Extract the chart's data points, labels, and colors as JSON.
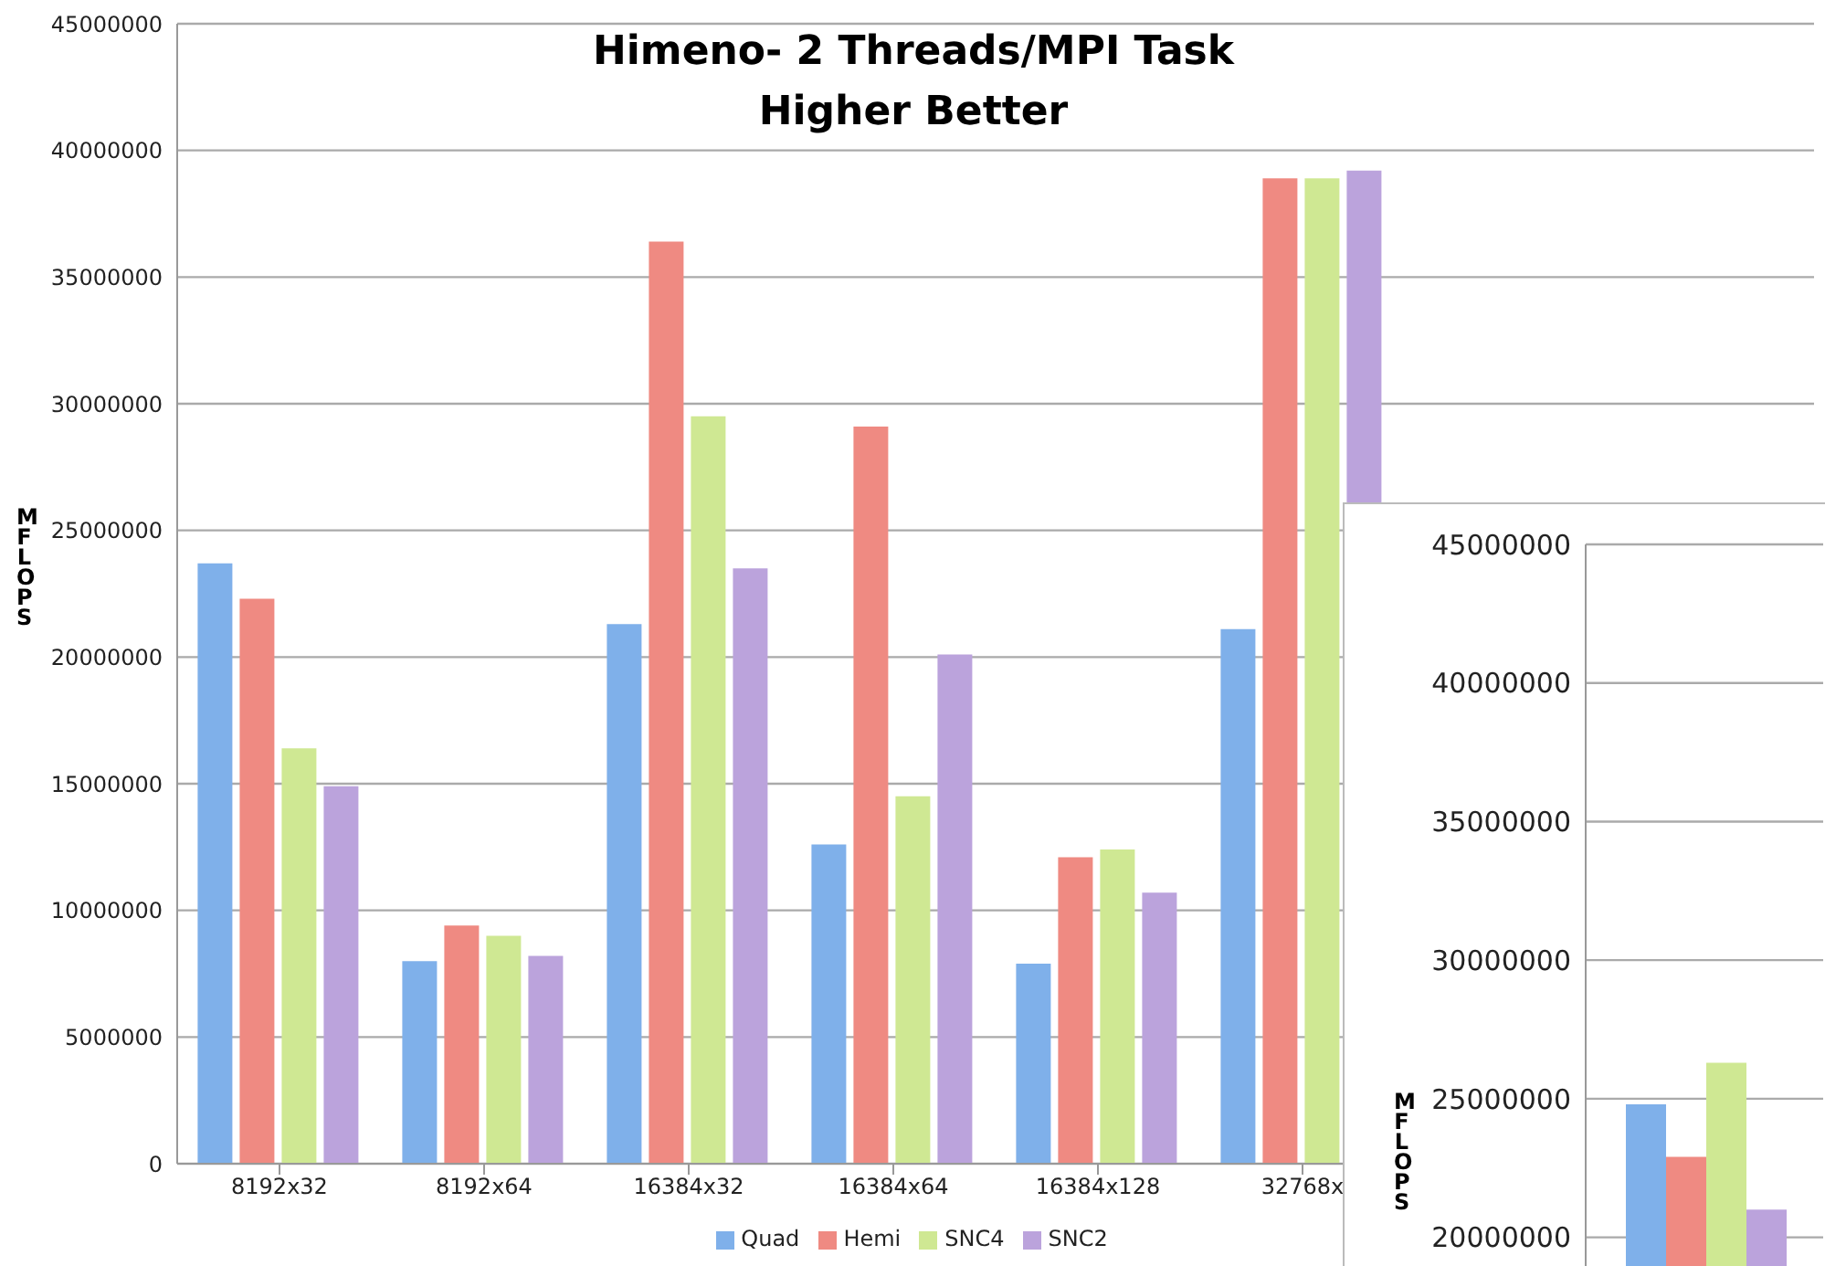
{
  "chart_data": [
    {
      "type": "bar",
      "title": "Himeno- 2 Threads/MPI Task",
      "subtitle": "Higher Better",
      "ylabel": "MFLOPS",
      "categories": [
        "8192x32",
        "8192x64",
        "16384x32",
        "16384x64",
        "16384x128",
        "32768x",
        null,
        null
      ],
      "series": [
        {
          "name": "Quad",
          "color": "#7fb0ea",
          "values": [
            23700000,
            8000000,
            21300000,
            12600000,
            7900000,
            21100000,
            null,
            null
          ]
        },
        {
          "name": "Hemi",
          "color": "#ef8a82",
          "values": [
            22300000,
            9400000,
            36400000,
            29100000,
            12100000,
            38900000,
            null,
            null
          ]
        },
        {
          "name": "SNC4",
          "color": "#cfe893",
          "values": [
            16400000,
            9000000,
            29500000,
            14500000,
            12400000,
            38900000,
            null,
            null
          ]
        },
        {
          "name": "SNC2",
          "color": "#bba3dc",
          "values": [
            14900000,
            8200000,
            23500000,
            20100000,
            10700000,
            39200000,
            null,
            null
          ]
        }
      ],
      "ylim": [
        0,
        45000000
      ],
      "yticks": [
        0,
        5000000,
        10000000,
        15000000,
        20000000,
        25000000,
        30000000,
        35000000,
        40000000,
        45000000
      ],
      "grid": "y",
      "legend": "bottom"
    },
    {
      "type": "bar",
      "ylabel": "MFLOPS",
      "categories": [
        null
      ],
      "series": [
        {
          "color": "#7fb0ea",
          "values": [
            24800000
          ]
        },
        {
          "color": "#ef8a82",
          "values": [
            22900000
          ]
        },
        {
          "color": "#cfe893",
          "values": [
            26300000
          ]
        },
        {
          "color": "#bba3dc",
          "values": [
            21000000
          ]
        }
      ],
      "ylim": [
        18900000,
        45000000
      ],
      "yticks": [
        20000000,
        25000000,
        30000000,
        35000000,
        40000000,
        45000000
      ],
      "grid": "y",
      "tick_labels": "y"
    }
  ]
}
